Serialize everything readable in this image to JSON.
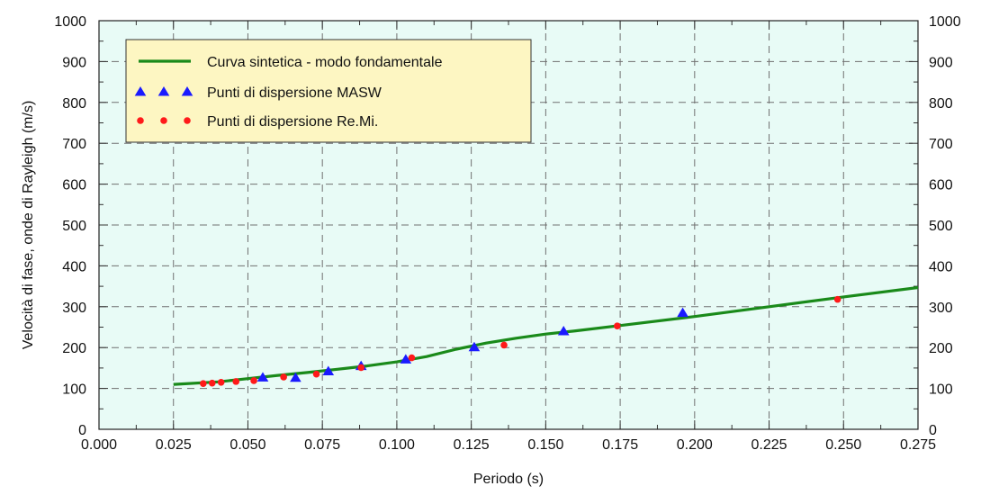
{
  "colors": {
    "plot_background": "#e8fbf6",
    "grid": "#707070",
    "legend_background": "#fdf6c2",
    "curve": "#1a8a1a",
    "masw": "#1a1aff",
    "remi": "#ff1a1a"
  },
  "chart_data": {
    "type": "scatter",
    "title": "",
    "xlabel": "Periodo (s)",
    "ylabel": "Velocità di fase, onde di Rayleigh (m/s)",
    "xlim": [
      0.0,
      0.275
    ],
    "ylim": [
      0,
      1000
    ],
    "x_ticks": [
      "0.000",
      "0.025",
      "0.050",
      "0.075",
      "0.100",
      "0.125",
      "0.150",
      "0.175",
      "0.200",
      "0.225",
      "0.250",
      "0.275"
    ],
    "y_ticks": [
      "0",
      "100",
      "200",
      "300",
      "400",
      "500",
      "600",
      "700",
      "800",
      "900",
      "1000"
    ],
    "grid": true,
    "legend_position": "top-left",
    "series": [
      {
        "name": "Curva sintetica - modo fondamentale",
        "kind": "line",
        "x": [
          0.025,
          0.04,
          0.05,
          0.06,
          0.07,
          0.08,
          0.09,
          0.1,
          0.11,
          0.12,
          0.13,
          0.14,
          0.15,
          0.16,
          0.175,
          0.2,
          0.225,
          0.25,
          0.275
        ],
        "y": [
          110,
          116,
          124,
          132,
          139,
          147,
          155,
          165,
          178,
          196,
          211,
          223,
          233,
          241,
          254,
          276,
          300,
          324,
          347
        ]
      },
      {
        "name": "Punti di dispersione MASW",
        "kind": "triangle",
        "x": [
          0.055,
          0.066,
          0.077,
          0.088,
          0.103,
          0.126,
          0.156,
          0.196
        ],
        "y": [
          127,
          126,
          142,
          155,
          171,
          201,
          240,
          285
        ]
      },
      {
        "name": "Punti di dispersione Re.Mi.",
        "kind": "dot",
        "x": [
          0.035,
          0.038,
          0.041,
          0.046,
          0.052,
          0.062,
          0.073,
          0.088,
          0.105,
          0.136,
          0.174,
          0.248
        ],
        "y": [
          112,
          113,
          115,
          117,
          119,
          128,
          135,
          151,
          175,
          206,
          253,
          318
        ]
      }
    ]
  }
}
